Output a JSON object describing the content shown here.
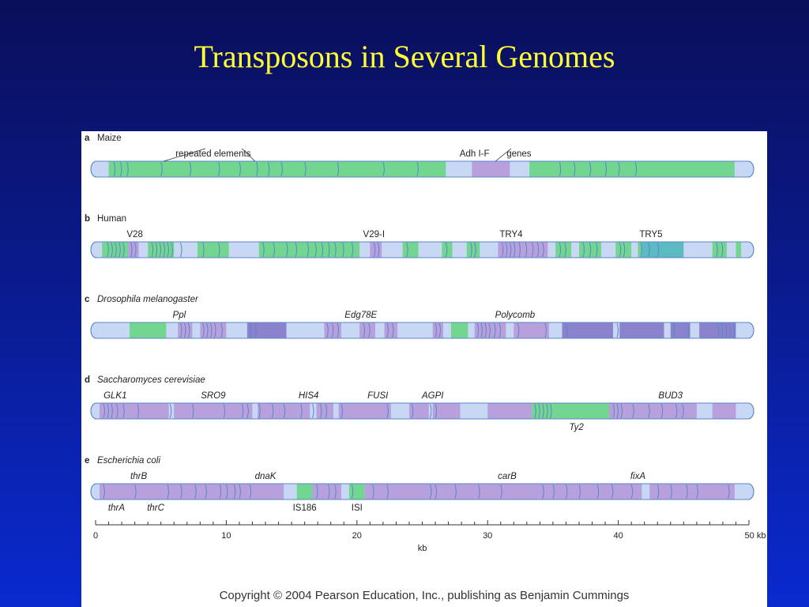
{
  "slide": {
    "title": "Transposons in Several Genomes",
    "copyright": "Copyright © 2004 Pearson Education, Inc., publishing as Benjamin Cummings"
  },
  "colors": {
    "bar_base": "#c8d8f4",
    "repeat_green": "#72d690",
    "gene_purple": "#b7a0dc",
    "gene_dark_purple": "#8a82cc",
    "teal": "#5cbac2",
    "outline": "#5a86c8"
  },
  "axis": {
    "unit_label": "kb",
    "min": 0,
    "max": 50,
    "major_ticks": [
      "0",
      "10",
      "20",
      "30",
      "40",
      "50 kb"
    ]
  },
  "genomes": [
    {
      "letter": "a",
      "name": "Maize",
      "italic": false,
      "segments": [
        {
          "start": 0.0,
          "end": 1.0,
          "color": "base"
        },
        {
          "start": 1.0,
          "end": 26.8,
          "color": "green"
        },
        {
          "start": 26.8,
          "end": 28.8,
          "color": "base"
        },
        {
          "start": 28.8,
          "end": 31.7,
          "color": "purple"
        },
        {
          "start": 31.7,
          "end": 33.2,
          "color": "base"
        },
        {
          "start": 33.2,
          "end": 48.9,
          "color": "green"
        },
        {
          "start": 48.9,
          "end": 50.0,
          "color": "base"
        }
      ],
      "dividers": [
        1.4,
        1.9,
        2.4,
        5.0,
        7.2,
        9.4,
        11.0,
        12.3,
        13.2,
        14.2,
        16.0,
        18.5,
        22.0,
        24.6,
        35.5,
        36.6,
        37.8,
        39.0,
        40.0,
        41.3
      ],
      "labels": [
        {
          "text": "repeated elements",
          "pos": 9.0,
          "style": "normal",
          "place": "above"
        },
        {
          "text": "Adh I-F",
          "pos": 29.0,
          "style": "normal",
          "place": "above"
        },
        {
          "text": "genes",
          "pos": 32.4,
          "style": "normal",
          "place": "above"
        }
      ]
    },
    {
      "letter": "b",
      "name": "Human",
      "italic": false,
      "segments": [
        {
          "start": 0.0,
          "end": 0.5,
          "color": "base"
        },
        {
          "start": 0.5,
          "end": 2.5,
          "color": "green"
        },
        {
          "start": 2.5,
          "end": 3.3,
          "color": "purple"
        },
        {
          "start": 4.0,
          "end": 6.0,
          "color": "green"
        },
        {
          "start": 7.8,
          "end": 10.2,
          "color": "green"
        },
        {
          "start": 12.5,
          "end": 20.2,
          "color": "green"
        },
        {
          "start": 21.0,
          "end": 21.9,
          "color": "purple"
        },
        {
          "start": 23.5,
          "end": 24.7,
          "color": "green"
        },
        {
          "start": 26.5,
          "end": 27.3,
          "color": "green"
        },
        {
          "start": 28.4,
          "end": 29.4,
          "color": "green"
        },
        {
          "start": 30.8,
          "end": 34.6,
          "color": "purple"
        },
        {
          "start": 35.2,
          "end": 36.4,
          "color": "green"
        },
        {
          "start": 37.0,
          "end": 38.7,
          "color": "green"
        },
        {
          "start": 39.8,
          "end": 41.0,
          "color": "green"
        },
        {
          "start": 41.5,
          "end": 42.1,
          "color": "green"
        },
        {
          "start": 41.8,
          "end": 45.0,
          "color": "teal"
        },
        {
          "start": 47.2,
          "end": 48.3,
          "color": "green"
        },
        {
          "start": 49.0,
          "end": 49.4,
          "color": "green"
        }
      ],
      "dividers": [
        0.9,
        1.2,
        1.5,
        1.8,
        2.1,
        2.7,
        3.0,
        4.3,
        4.6,
        4.9,
        5.2,
        5.5,
        5.8,
        6.5,
        8.2,
        9.4,
        12.8,
        13.6,
        14.6,
        15.3,
        16.2,
        16.8,
        17.3,
        17.8,
        18.3,
        18.9,
        19.6,
        21.3,
        21.6,
        23.8,
        26.8,
        28.7,
        29.0,
        31.1,
        31.4,
        31.7,
        32.0,
        32.4,
        32.9,
        33.4,
        33.8,
        34.2,
        35.5,
        35.9,
        37.3,
        37.8,
        38.3,
        40.1,
        40.4,
        41.7,
        42.3,
        43.0,
        47.5,
        47.9
      ],
      "labels": [
        {
          "text": "V28",
          "pos": 3.0,
          "style": "normal",
          "place": "above"
        },
        {
          "text": "V29-I",
          "pos": 21.3,
          "style": "normal",
          "place": "above"
        },
        {
          "text": "TRY4",
          "pos": 31.8,
          "style": "normal",
          "place": "above"
        },
        {
          "text": "TRY5",
          "pos": 42.5,
          "style": "normal",
          "place": "above"
        }
      ]
    },
    {
      "letter": "c",
      "name": "Drosophila melanogaster",
      "italic": true,
      "segments": [
        {
          "start": 0.0,
          "end": 2.6,
          "color": "base"
        },
        {
          "start": 2.6,
          "end": 5.4,
          "color": "green"
        },
        {
          "start": 5.4,
          "end": 6.3,
          "color": "base"
        },
        {
          "start": 6.3,
          "end": 7.4,
          "color": "purple"
        },
        {
          "start": 8.0,
          "end": 10.0,
          "color": "purple"
        },
        {
          "start": 11.6,
          "end": 14.6,
          "color": "dark"
        },
        {
          "start": 17.5,
          "end": 18.8,
          "color": "purple"
        },
        {
          "start": 20.2,
          "end": 21.4,
          "color": "purple"
        },
        {
          "start": 22.1,
          "end": 23.1,
          "color": "purple"
        },
        {
          "start": 25.8,
          "end": 26.6,
          "color": "purple"
        },
        {
          "start": 27.2,
          "end": 28.5,
          "color": "green"
        },
        {
          "start": 29.0,
          "end": 31.4,
          "color": "purple"
        },
        {
          "start": 32.0,
          "end": 34.7,
          "color": "purple"
        },
        {
          "start": 35.7,
          "end": 39.6,
          "color": "dark"
        },
        {
          "start": 40.1,
          "end": 43.5,
          "color": "dark"
        },
        {
          "start": 44.0,
          "end": 45.5,
          "color": "dark"
        },
        {
          "start": 46.2,
          "end": 49.0,
          "color": "dark"
        }
      ],
      "dividers": [
        6.5,
        6.8,
        7.1,
        8.2,
        8.5,
        8.8,
        9.1,
        9.6,
        11.8,
        12.2,
        17.7,
        18.1,
        18.5,
        20.5,
        20.9,
        22.3,
        22.7,
        26.0,
        26.3,
        29.2,
        29.5,
        29.8,
        30.1,
        30.5,
        30.9,
        32.3,
        34.4,
        36.0,
        39.9,
        44.2,
        45.3,
        47.6,
        47.9,
        48.2,
        48.5,
        48.8
      ],
      "labels": [
        {
          "text": "Ppl",
          "pos": 6.4,
          "style": "italic",
          "place": "above"
        },
        {
          "text": "Edg78E",
          "pos": 20.3,
          "style": "italic",
          "place": "above"
        },
        {
          "text": "Polycomb",
          "pos": 32.1,
          "style": "italic",
          "place": "above"
        }
      ]
    },
    {
      "letter": "d",
      "name": "Saccharomyces cerevisiae",
      "italic": true,
      "segments": [
        {
          "start": 0.0,
          "end": 0.3,
          "color": "base"
        },
        {
          "start": 0.3,
          "end": 5.6,
          "color": "purple"
        },
        {
          "start": 6.0,
          "end": 12.0,
          "color": "purple"
        },
        {
          "start": 12.4,
          "end": 16.4,
          "color": "purple"
        },
        {
          "start": 16.9,
          "end": 18.2,
          "color": "purple"
        },
        {
          "start": 18.6,
          "end": 22.6,
          "color": "purple"
        },
        {
          "start": 24.0,
          "end": 25.5,
          "color": "purple"
        },
        {
          "start": 25.8,
          "end": 27.9,
          "color": "purple"
        },
        {
          "start": 30.0,
          "end": 33.4,
          "color": "purple"
        },
        {
          "start": 33.4,
          "end": 35.0,
          "color": "green"
        },
        {
          "start": 35.0,
          "end": 39.3,
          "color": "green"
        },
        {
          "start": 39.3,
          "end": 46.0,
          "color": "purple"
        },
        {
          "start": 47.2,
          "end": 49.0,
          "color": "purple"
        }
      ],
      "dividers": [
        0.6,
        0.9,
        1.2,
        1.6,
        2.1,
        3.2,
        5.7,
        7.4,
        9.8,
        11.2,
        11.6,
        12.5,
        13.5,
        14.4,
        15.7,
        16.6,
        17.2,
        17.6,
        18.8,
        22.3,
        24.2,
        25.6,
        26.0,
        33.6,
        33.9,
        34.2,
        34.5,
        34.8,
        39.6,
        39.9,
        40.2,
        41.1,
        42.3,
        43.3,
        44.4,
        44.9
      ],
      "labels": [
        {
          "text": "GLK1",
          "pos": 1.5,
          "style": "italic",
          "place": "above"
        },
        {
          "text": "SRO9",
          "pos": 9.0,
          "style": "italic",
          "place": "above"
        },
        {
          "text": "HIS4",
          "pos": 16.3,
          "style": "italic",
          "place": "above"
        },
        {
          "text": "FUSI",
          "pos": 21.6,
          "style": "italic",
          "place": "above"
        },
        {
          "text": "AGPI",
          "pos": 25.8,
          "style": "italic",
          "place": "above"
        },
        {
          "text": "BUD3",
          "pos": 44.0,
          "style": "italic",
          "place": "above"
        },
        {
          "text": "Ty2",
          "pos": 36.8,
          "style": "italic",
          "place": "below"
        }
      ]
    },
    {
      "letter": "e",
      "name": "Escherichia coli",
      "italic": true,
      "segments": [
        {
          "start": 0.0,
          "end": 0.3,
          "color": "base"
        },
        {
          "start": 0.3,
          "end": 14.4,
          "color": "purple"
        },
        {
          "start": 15.4,
          "end": 16.6,
          "color": "green"
        },
        {
          "start": 16.6,
          "end": 18.8,
          "color": "purple"
        },
        {
          "start": 19.4,
          "end": 20.6,
          "color": "green"
        },
        {
          "start": 20.6,
          "end": 41.8,
          "color": "purple"
        },
        {
          "start": 42.4,
          "end": 48.9,
          "color": "purple"
        }
      ],
      "dividers": [
        0.6,
        3.0,
        5.5,
        6.5,
        7.6,
        8.4,
        9.5,
        10.0,
        10.6,
        11.0,
        11.8,
        16.9,
        17.8,
        18.3,
        19.6,
        21.2,
        22.3,
        25.6,
        26.0,
        27.5,
        29.3,
        31.0,
        34.2,
        35.0,
        36.0,
        37.0,
        38.4,
        39.5,
        41.0,
        43.0,
        44.0,
        45.2,
        46.0,
        48.4
      ],
      "labels": [
        {
          "text": "thrB",
          "pos": 3.3,
          "style": "italic",
          "place": "above"
        },
        {
          "text": "dnaK",
          "pos": 13.0,
          "style": "italic",
          "place": "above"
        },
        {
          "text": "carB",
          "pos": 31.5,
          "style": "italic",
          "place": "above"
        },
        {
          "text": "fixA",
          "pos": 41.5,
          "style": "italic",
          "place": "above"
        },
        {
          "text": "thrA",
          "pos": 1.6,
          "style": "italic",
          "place": "below"
        },
        {
          "text": "thrC",
          "pos": 4.6,
          "style": "italic",
          "place": "below"
        },
        {
          "text": "IS186",
          "pos": 16.0,
          "style": "normal",
          "place": "below"
        },
        {
          "text": "ISI",
          "pos": 20.0,
          "style": "normal",
          "place": "below"
        }
      ]
    }
  ]
}
